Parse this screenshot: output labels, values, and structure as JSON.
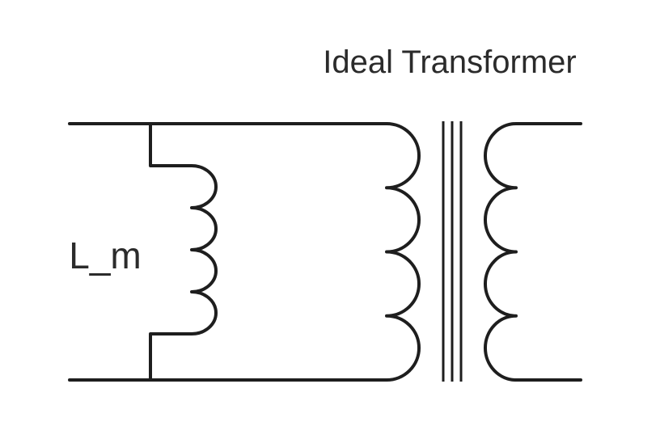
{
  "diagram": {
    "title": "Ideal Transformer",
    "inductor_label": "L_m",
    "colors": {
      "line": "#1e1e1e",
      "text": "#2b2b2b",
      "background": "#ffffff"
    }
  }
}
